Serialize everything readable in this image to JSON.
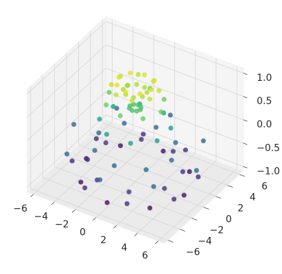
{
  "chart_data": {
    "type": "scatter3d",
    "colormap": "viridis",
    "grid": true,
    "series": [
      {
        "x": [
          0.5,
          0.35,
          0,
          -0.35,
          -0.5,
          -0.35,
          0,
          0.35,
          0.92,
          0.38,
          -0.38,
          -0.92,
          -0.92,
          -0.38,
          0.38,
          0.92,
          1.57,
          1.11,
          0,
          -1.11,
          -1.57,
          -1.11,
          0,
          1.11,
          1.85,
          0.77,
          -0.77,
          -1.85,
          -1.85,
          -0.77,
          0.77,
          1.85,
          2.5,
          1.77,
          0,
          -1.77,
          -2.5,
          -1.77,
          0,
          1.77,
          2.77,
          1.15,
          -1.15,
          -2.77,
          -2.77,
          -1.15,
          1.15,
          2.77,
          3.5,
          2.47,
          0,
          -2.47,
          -3.5,
          -2.47,
          0,
          2.47,
          3.7,
          1.53,
          -1.53,
          -3.7,
          -3.7,
          -1.53,
          1.53,
          3.7,
          4.7,
          3.32,
          0,
          -3.32,
          -4.7,
          -3.32,
          0,
          3.32,
          4.9,
          2.03,
          -2.03,
          -4.9,
          -4.9,
          -2.03,
          2.03,
          4.9,
          5.9,
          4.17,
          0,
          -4.17,
          -5.9,
          -4.17,
          0,
          4.17
        ],
        "y": [
          0,
          0.35,
          0.5,
          0.35,
          0,
          -0.35,
          -0.5,
          -0.35,
          0.38,
          0.92,
          0.92,
          0.38,
          -0.38,
          -0.92,
          -0.92,
          -0.38,
          0,
          1.11,
          1.57,
          1.11,
          0,
          -1.11,
          -1.57,
          -1.11,
          0.77,
          1.85,
          1.85,
          0.77,
          -0.77,
          -1.85,
          -1.85,
          -0.77,
          0,
          1.77,
          2.5,
          1.77,
          0,
          -1.77,
          -2.5,
          -1.77,
          1.15,
          2.77,
          2.77,
          1.15,
          -1.15,
          -2.77,
          -2.77,
          -1.15,
          0,
          2.47,
          3.5,
          2.47,
          0,
          -2.47,
          -3.5,
          -2.47,
          1.53,
          3.7,
          3.7,
          1.53,
          -1.53,
          -3.7,
          -3.7,
          -1.53,
          0,
          3.32,
          4.7,
          3.32,
          0,
          -3.32,
          -4.7,
          -3.32,
          2.03,
          4.9,
          4.9,
          2.03,
          -2.03,
          -4.9,
          -4.9,
          -2.03,
          0,
          4.17,
          5.9,
          4.17,
          0,
          -4.17,
          -5.9,
          -4.17
        ],
        "z": [
          0.48,
          0.48,
          0.48,
          0.48,
          0.48,
          0.48,
          0.48,
          0.48,
          0.84,
          0.84,
          0.84,
          0.84,
          0.84,
          0.84,
          0.84,
          0.84,
          1.0,
          1.0,
          1.0,
          1.0,
          1.0,
          1.0,
          1.0,
          1.0,
          0.91,
          0.91,
          0.91,
          0.91,
          0.91,
          0.91,
          0.91,
          0.91,
          0.6,
          0.6,
          0.6,
          0.6,
          0.6,
          0.6,
          0.6,
          0.6,
          0.14,
          0.14,
          0.14,
          0.14,
          0.14,
          0.14,
          0.14,
          0.14,
          -0.35,
          -0.35,
          -0.35,
          -0.35,
          -0.35,
          -0.35,
          -0.35,
          -0.35,
          -0.76,
          -0.76,
          -0.76,
          -0.76,
          -0.76,
          -0.76,
          -0.76,
          -0.76,
          -1.0,
          -1.0,
          -1.0,
          -1.0,
          -1.0,
          -1.0,
          -1.0,
          -1.0,
          -0.83,
          -0.83,
          -0.83,
          -0.83,
          -0.83,
          -0.83,
          -0.83,
          -0.83,
          -0.37,
          -0.37,
          -0.37,
          -0.37,
          -0.37,
          -0.37,
          -0.37,
          -0.37
        ]
      }
    ],
    "xlim": [
      -6.6,
      6.6
    ],
    "ylim": [
      -6.6,
      6.6
    ],
    "zlim": [
      -1.1,
      1.1
    ],
    "xticks": [
      {
        "value": -6,
        "label": "−6"
      },
      {
        "value": -4,
        "label": "−4"
      },
      {
        "value": -2,
        "label": "−2"
      },
      0,
      2,
      4,
      6
    ],
    "yticks": [
      {
        "value": -6,
        "label": "−6"
      },
      {
        "value": -4,
        "label": "−4"
      },
      {
        "value": -2,
        "label": "−2"
      },
      0,
      2,
      4,
      6
    ],
    "zticks": [
      {
        "value": -1,
        "label": "−1.0"
      },
      {
        "value": -0.5,
        "label": "−0.5"
      },
      {
        "value": 0,
        "label": "0.0"
      },
      {
        "value": 0.5,
        "label": "0.5"
      },
      {
        "value": 1,
        "label": "1.0"
      }
    ]
  }
}
